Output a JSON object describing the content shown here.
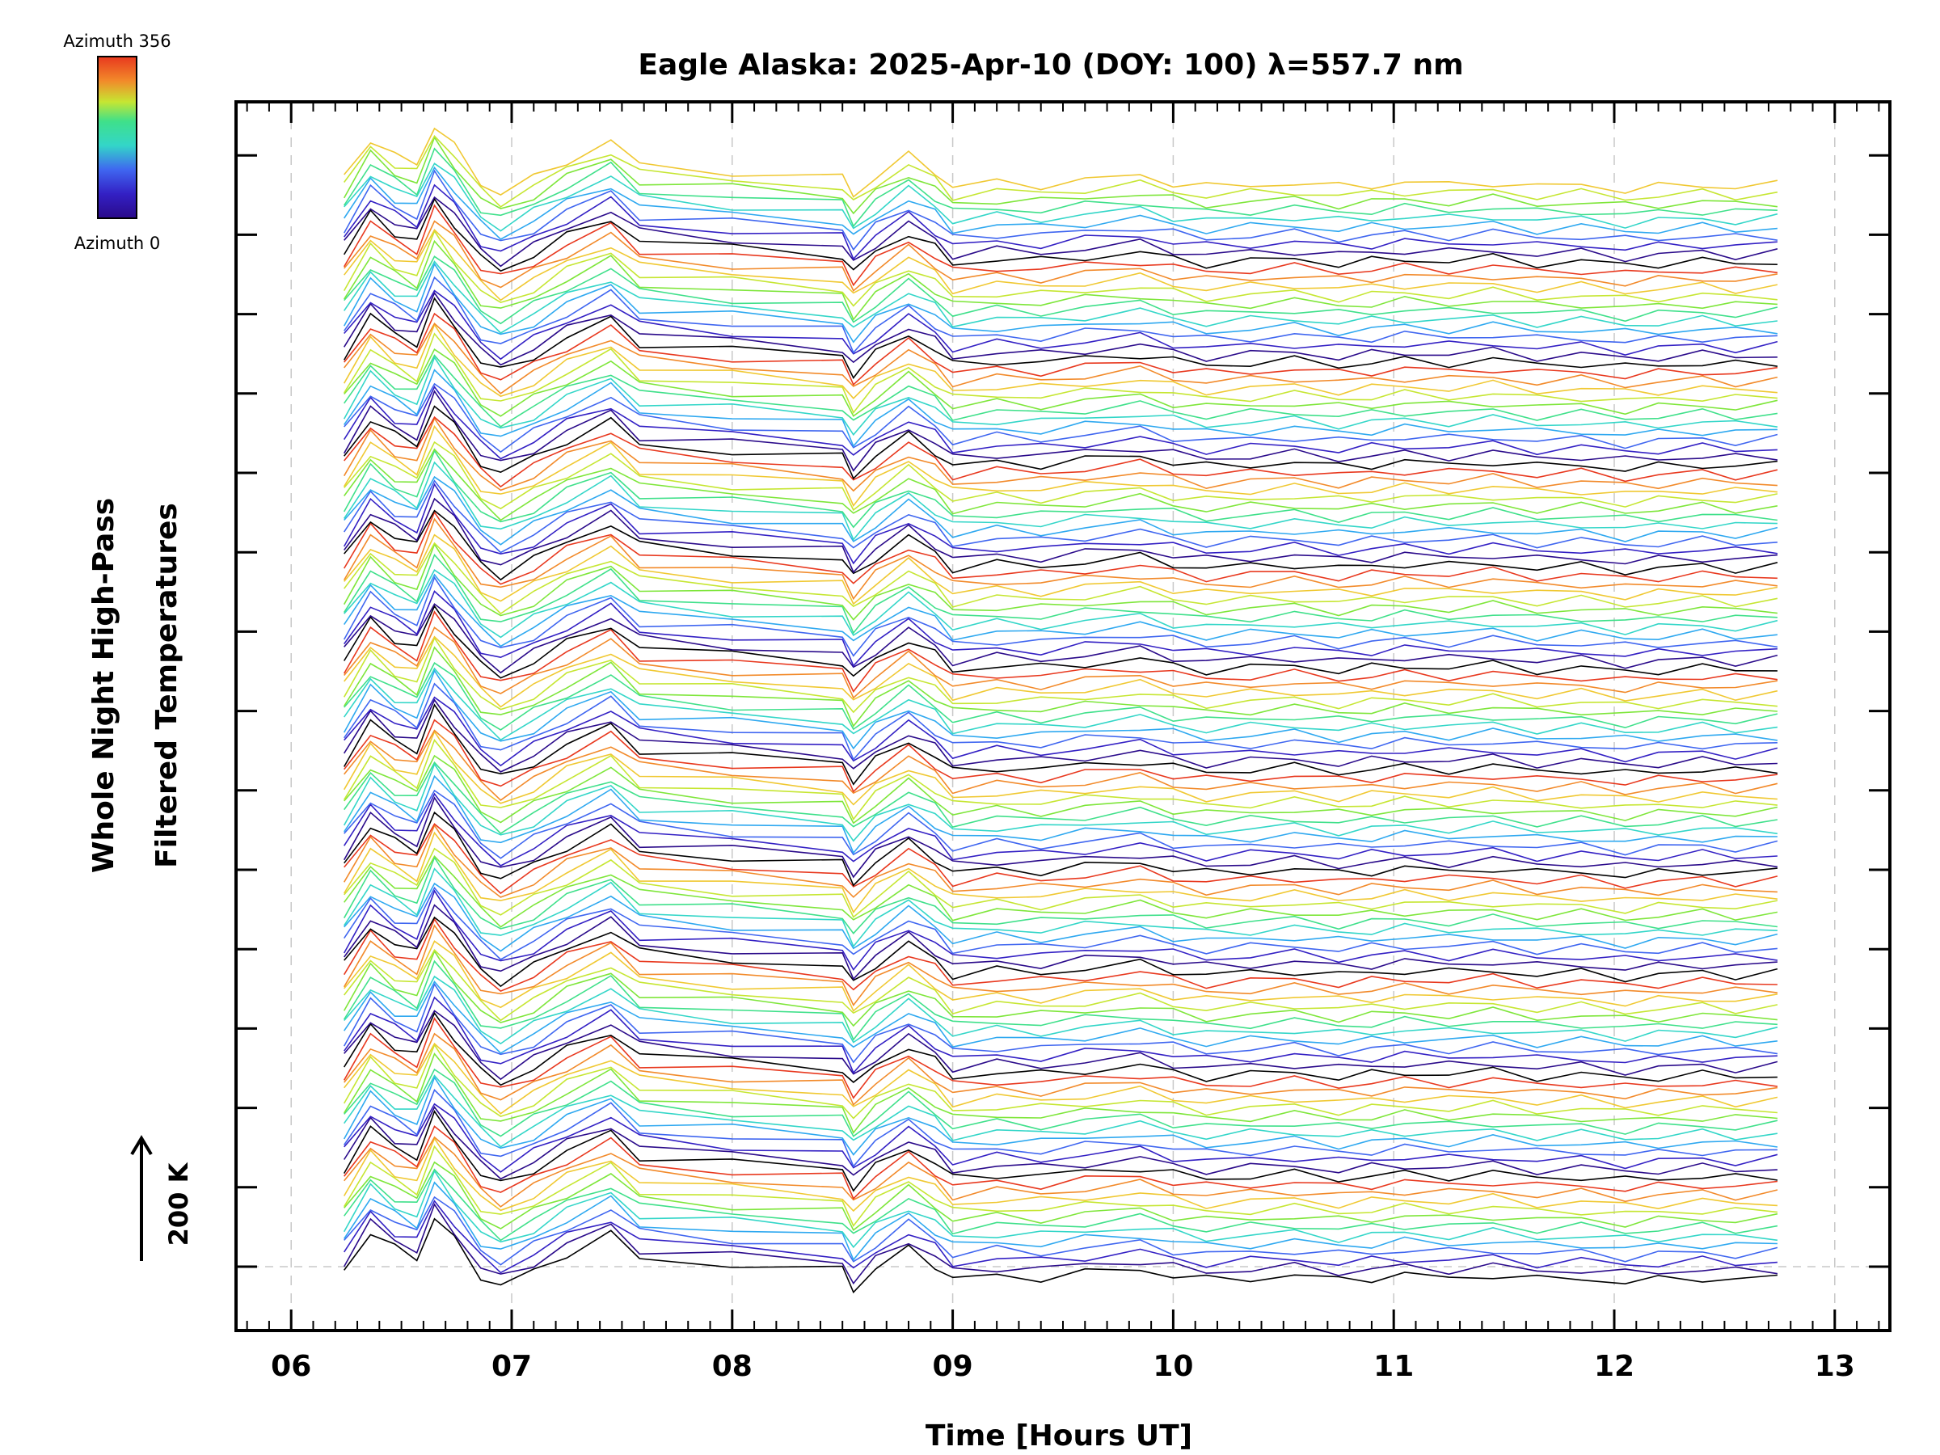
{
  "colors": {
    "axis": "#000000",
    "grid": "#c8c8c8",
    "palette": [
      "#000000",
      "#2a0a8a",
      "#3320c4",
      "#3f66f0",
      "#2ea8f0",
      "#33d6c8",
      "#3fe08a",
      "#7ee63a",
      "#c6e632",
      "#f0c832",
      "#f28a2a",
      "#e8381e"
    ]
  },
  "colorbar": {
    "top_label": "Azimuth 356",
    "bottom_label": "Azimuth 0"
  },
  "scale_bar": {
    "label": "200 K",
    "arrow": "up-arrow"
  },
  "chart_data": {
    "type": "line",
    "title": "Eagle Alaska: 2025-Apr-10 (DOY: 100) λ=557.7 nm",
    "xlabel": "Time [Hours UT]",
    "ylabel_lines": [
      "Whole Night High-Pass",
      "Filtered Temperatures"
    ],
    "xlim": [
      5.75,
      13.25
    ],
    "x_ticks": [
      {
        "value": 6,
        "label": "06"
      },
      {
        "value": 7,
        "label": "07"
      },
      {
        "value": 8,
        "label": "08"
      },
      {
        "value": 9,
        "label": "09"
      },
      {
        "value": 10,
        "label": "10"
      },
      {
        "value": 11,
        "label": "11"
      },
      {
        "value": 12,
        "label": "12"
      },
      {
        "value": 13,
        "label": "13"
      }
    ],
    "grid": "dashed vertical at hours",
    "series_count": 130,
    "azimuth_range": [
      0,
      356
    ],
    "common_pattern": {
      "note": "stacked high-pass filtered temperature traces, each offset upward and colored by azimuth",
      "x": [
        6.24,
        6.36,
        6.47,
        6.57,
        6.65,
        6.74,
        6.86,
        6.95,
        7.1,
        7.25,
        7.45,
        7.58,
        8.0,
        8.5,
        8.55,
        8.65,
        8.8,
        8.92,
        9.0,
        9.2,
        9.4,
        9.6,
        9.85,
        10.0,
        10.15,
        10.35,
        10.55,
        10.75,
        10.9,
        11.05,
        11.25,
        11.45,
        11.65,
        11.85,
        12.05,
        12.2,
        12.4,
        12.55,
        12.74
      ],
      "y": [
        -8,
        80,
        40,
        20,
        110,
        60,
        -20,
        -45,
        -10,
        30,
        72,
        20,
        5,
        -10,
        -50,
        -5,
        40,
        5,
        -30,
        -20,
        -25,
        -15,
        -5,
        -20,
        -30,
        -25,
        -20,
        -30,
        -25,
        -20,
        -25,
        -18,
        -30,
        -25,
        -35,
        -30,
        -25,
        -30,
        -25
      ]
    }
  }
}
